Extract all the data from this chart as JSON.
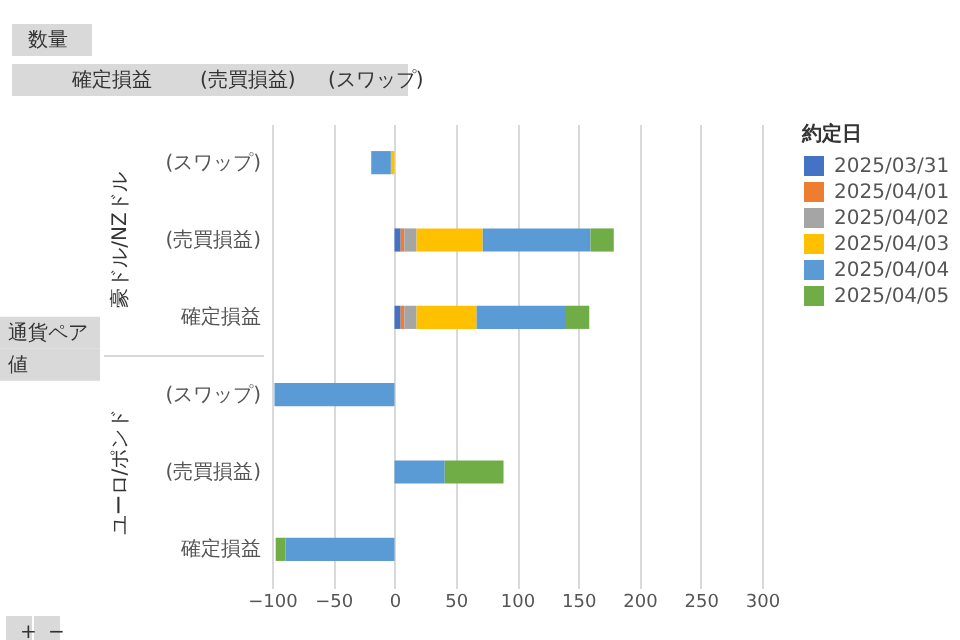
{
  "chart_data": {
    "type": "bar",
    "orientation": "horizontal",
    "stacked": true,
    "categories": [
      "(スワップ)",
      "(売買損益)",
      "確定損益",
      "(スワップ)",
      "(売買損益)",
      "確定損益"
    ],
    "series": [
      {
        "name": "2025/03/31",
        "color": "#4472c4",
        "values": [
          null,
          5,
          5,
          null,
          null,
          null
        ]
      },
      {
        "name": "2025/04/01",
        "color": "#ed7d31",
        "values": [
          null,
          3,
          3,
          null,
          null,
          null
        ]
      },
      {
        "name": "2025/04/02",
        "color": "#a5a5a5",
        "values": [
          null,
          10,
          10,
          null,
          null,
          null
        ]
      },
      {
        "name": "2025/04/03",
        "color": "#ffc000",
        "values": [
          -3,
          54,
          49,
          null,
          null,
          null
        ]
      },
      {
        "name": "2025/04/04",
        "color": "#5b9bd5",
        "values": [
          -16,
          88,
          73,
          -98,
          41,
          -89
        ]
      },
      {
        "name": "2025/04/05",
        "color": "#70ad47",
        "values": [
          null,
          19,
          19,
          null,
          48,
          -8
        ]
      }
    ],
    "xlim": [
      -100,
      300
    ],
    "xticks": [
      -100,
      -50,
      0,
      50,
      100,
      150,
      200,
      250,
      300
    ],
    "grid": "x",
    "legend": "right",
    "legend_title": "約定日",
    "annotations": [
      "数量",
      "確定損益",
      "(売買損益)",
      "(スワップ)",
      "豪ドル/NZドル",
      "ユーロ/ポンド",
      "通貨ペア",
      "値",
      "+",
      "−"
    ]
  }
}
